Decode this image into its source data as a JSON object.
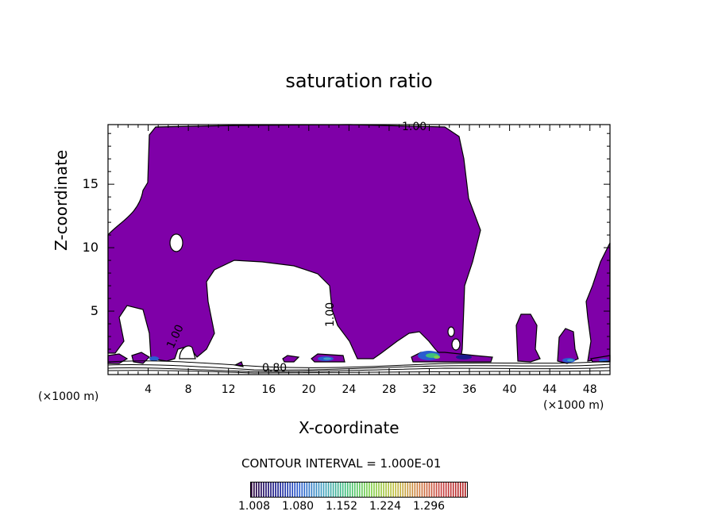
{
  "title": "saturation ratio",
  "chart_data": {
    "type": "contour",
    "title": "saturation ratio",
    "xlabel": "X-coordinate",
    "ylabel": "Z-coordinate",
    "x_unit": "(×1000 m)",
    "xlim": [
      0,
      50
    ],
    "ylim": [
      0,
      19.7
    ],
    "x_ticks": [
      4,
      8,
      12,
      16,
      20,
      24,
      28,
      32,
      36,
      40,
      44,
      48
    ],
    "y_ticks": [
      5,
      10,
      15
    ],
    "contour_labels": [
      "1.00",
      "1.00",
      "0.80",
      "1.00"
    ],
    "contour_interval_text": "CONTOUR INTERVAL = 1.000E-01",
    "colorbar_ticks": [
      "1.008",
      "1.080",
      "1.152",
      "1.224",
      "1.296"
    ],
    "fill_color": "#7f00a8",
    "colors": {
      "colorbar": [
        "#2a003a",
        "#1a1a8c",
        "#2a5cd0",
        "#40a0c0",
        "#3fc07a",
        "#7fd04a",
        "#c0c040",
        "#d08040",
        "#c84040",
        "#b02020"
      ]
    }
  }
}
